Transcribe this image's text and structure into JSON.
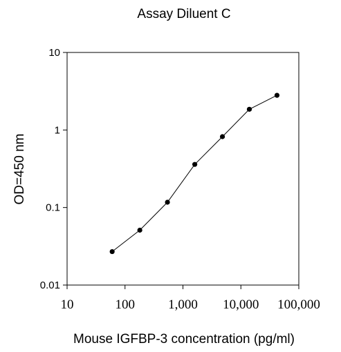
{
  "chart_data": {
    "type": "line",
    "title": "Assay Diluent C",
    "xlabel": "Mouse IGFBP-3 concentration (pg/ml)",
    "ylabel": "OD=450 nm",
    "x_scale": "log",
    "y_scale": "log",
    "xlim": [
      10,
      100000
    ],
    "ylim": [
      0.01,
      10
    ],
    "x_ticks": [
      10,
      100,
      1000,
      10000,
      100000
    ],
    "x_tick_labels": [
      "10",
      "100",
      "1,000",
      "10,000",
      "100,000"
    ],
    "y_ticks": [
      0.01,
      0.1,
      1,
      10
    ],
    "y_tick_labels": [
      "0.01",
      "0.1",
      "1",
      "10"
    ],
    "grid": false,
    "legend": "none",
    "series": [
      {
        "x": [
          60,
          180,
          540,
          1600,
          4800,
          14000,
          42000
        ],
        "y": [
          0.027,
          0.051,
          0.117,
          0.36,
          0.82,
          1.85,
          2.8
        ],
        "color": "#000000",
        "marker": "circle"
      }
    ]
  }
}
